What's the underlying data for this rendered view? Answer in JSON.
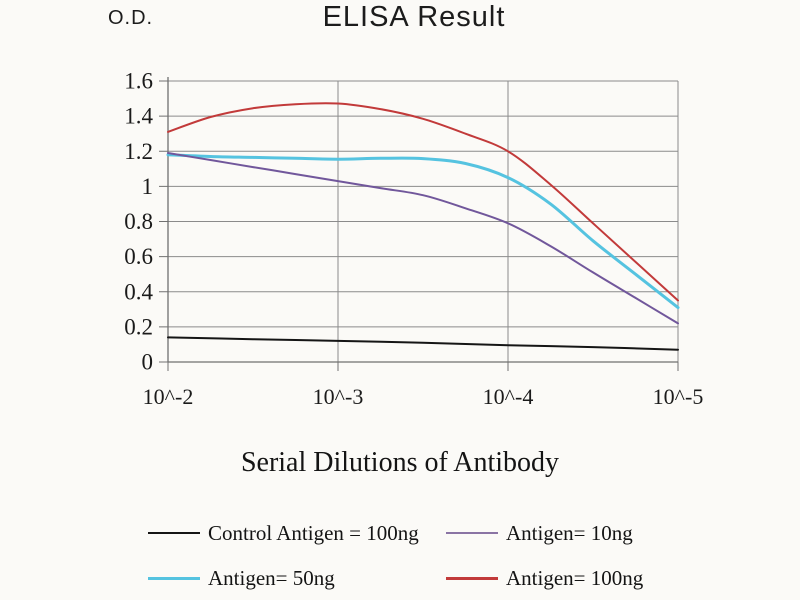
{
  "chart_data": {
    "type": "line",
    "title": "ELISA Result",
    "ylabel": "O.D.",
    "xlabel": "Serial Dilutions of Antibody",
    "x_tick_labels": [
      "10^-2",
      "10^-3",
      "10^-4",
      "10^-5"
    ],
    "y_tick_labels": [
      "0",
      "0.2",
      "0.4",
      "0.6",
      "0.8",
      "1",
      "1.2",
      "1.4",
      "1.6"
    ],
    "ylim": [
      0,
      1.6
    ],
    "y_step": 0.2,
    "grid": true,
    "legend_position": "bottom",
    "colors": {
      "grid": "#8b8b8b",
      "axis": "#707070",
      "control": "#151515",
      "antigen10": "#71579b",
      "antigen50": "#55c3e0",
      "antigen100": "#c23a3a"
    },
    "series": [
      {
        "name": "Antigen= 50ng",
        "color": "#55c3e0",
        "width": 3,
        "points": [
          [
            0,
            1.18
          ],
          [
            0.25,
            1.17
          ],
          [
            0.5,
            1.165
          ],
          [
            0.75,
            1.16
          ],
          [
            1,
            1.155
          ],
          [
            1.25,
            1.16
          ],
          [
            1.5,
            1.158
          ],
          [
            1.75,
            1.13
          ],
          [
            2,
            1.05
          ],
          [
            2.25,
            0.9
          ],
          [
            2.5,
            0.69
          ],
          [
            2.75,
            0.5
          ],
          [
            3,
            0.31
          ]
        ]
      },
      {
        "name": "Antigen= 10ng",
        "color": "#71579b",
        "width": 2,
        "points": [
          [
            0,
            1.19
          ],
          [
            0.25,
            1.15
          ],
          [
            0.5,
            1.11
          ],
          [
            0.75,
            1.07
          ],
          [
            1,
            1.03
          ],
          [
            1.25,
            0.99
          ],
          [
            1.5,
            0.95
          ],
          [
            1.75,
            0.875
          ],
          [
            2,
            0.79
          ],
          [
            2.25,
            0.66
          ],
          [
            2.5,
            0.51
          ],
          [
            2.75,
            0.365
          ],
          [
            3,
            0.22
          ]
        ]
      },
      {
        "name": "Antigen= 100ng",
        "color": "#c23a3a",
        "width": 2,
        "points": [
          [
            0,
            1.31
          ],
          [
            0.25,
            1.395
          ],
          [
            0.5,
            1.445
          ],
          [
            0.75,
            1.468
          ],
          [
            1,
            1.472
          ],
          [
            1.25,
            1.44
          ],
          [
            1.5,
            1.385
          ],
          [
            1.75,
            1.3
          ],
          [
            2,
            1.2
          ],
          [
            2.25,
            1.01
          ],
          [
            2.5,
            0.79
          ],
          [
            2.75,
            0.57
          ],
          [
            3,
            0.35
          ]
        ]
      },
      {
        "name": "Control Antigen = 100ng",
        "color": "#151515",
        "width": 2,
        "points": [
          [
            0,
            0.14
          ],
          [
            0.5,
            0.13
          ],
          [
            1,
            0.12
          ],
          [
            1.5,
            0.11
          ],
          [
            2,
            0.095
          ],
          [
            2.5,
            0.085
          ],
          [
            3,
            0.07
          ]
        ]
      }
    ],
    "legend": [
      {
        "label": "Control Antigen = 100ng",
        "color": "#151515",
        "swatch_height": 2
      },
      {
        "label": "Antigen= 10ng",
        "color": "#8a74a4",
        "swatch_height": 2
      },
      {
        "label": "Antigen= 50ng",
        "color": "#55c3e0",
        "swatch_height": 3
      },
      {
        "label": "Antigen= 100ng",
        "color": "#c23a3a",
        "swatch_height": 3
      }
    ]
  }
}
